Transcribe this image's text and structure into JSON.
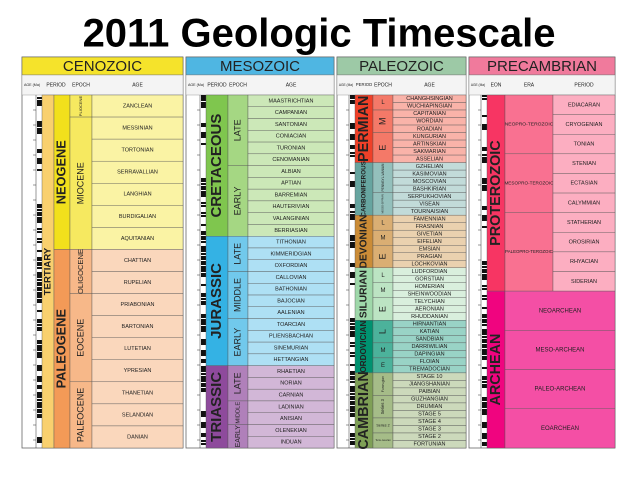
{
  "header": {
    "title": "2011 Geologic Timescale"
  },
  "columns": [
    {
      "name": "CENOZOIC",
      "color": "#f5e32b",
      "age_header": "AGE (Ma)",
      "headers": [
        "PERIOD",
        "EPOCH",
        "AGE"
      ],
      "span_label": "TERTIARY",
      "span_color": "#f9d06e",
      "periods": [
        {
          "name": "NEOGENE",
          "color": "#f2e01c",
          "epochs": [
            {
              "name": "PLIOCENE",
              "ages": [
                "ZANCLEAN"
              ]
            },
            {
              "name": "MIOCENE",
              "ages": [
                "MESSINIAN",
                "TORTONIAN",
                "SERRAVALLIAN",
                "LANGHIAN",
                "BURDIGALIAN",
                "AQUITANIAN"
              ]
            }
          ]
        },
        {
          "name": "PALEOGENE",
          "color": "#f39a57",
          "epochs": [
            {
              "name": "OLIGOCENE",
              "ages": [
                "CHATTIAN",
                "RUPELIAN"
              ]
            },
            {
              "name": "EOCENE",
              "ages": [
                "PRIABONIAN",
                "BARTONIAN",
                "LUTETIAN",
                "YPRESIAN"
              ]
            },
            {
              "name": "PALEOCENE",
              "ages": [
                "THANETIAN",
                "SELANDIAN",
                "DANIAN"
              ]
            }
          ]
        }
      ]
    },
    {
      "name": "MESOZOIC",
      "color": "#4fb6e2",
      "age_header": "AGE (Ma)",
      "headers": [
        "PERIOD",
        "EPOCH",
        "AGE"
      ],
      "periods": [
        {
          "name": "CRETACEOUS",
          "color": "#7fc64e",
          "epochs": [
            {
              "name": "LATE",
              "ages": [
                "MAASTRICHTIAN",
                "CAMPANIAN",
                "SANTONIAN",
                "CONIACIAN",
                "TURONIAN",
                "CENOMANIAN"
              ]
            },
            {
              "name": "EARLY",
              "ages": [
                "ALBIAN",
                "APTIAN",
                "BARREMIAN",
                "HAUTERIVIAN",
                "VALANGINIAN",
                "BERRIASIAN"
              ]
            }
          ]
        },
        {
          "name": "JURASSIC",
          "color": "#34b2e4",
          "epochs": [
            {
              "name": "LATE",
              "ages": [
                "TITHONIAN",
                "KIMMERIDGIAN",
                "OXFORDIAN"
              ]
            },
            {
              "name": "MIDDLE",
              "ages": [
                "CALLOVIAN",
                "BATHONIAN",
                "BAJOCIAN",
                "AALENIAN"
              ]
            },
            {
              "name": "EARLY",
              "ages": [
                "TOARCIAN",
                "PLIENSBACHIAN",
                "SINEMURIAN",
                "HETTANGIAN"
              ]
            }
          ]
        },
        {
          "name": "TRIASSIC",
          "color": "#8e4a9c",
          "epochs": [
            {
              "name": "LATE",
              "ages": [
                "RHAETIAN",
                "NORIAN",
                "CARNIAN"
              ]
            },
            {
              "name": "MIDDLE",
              "ages": [
                "LADINIAN",
                "ANISIAN"
              ]
            },
            {
              "name": "EARLY",
              "ages": [
                "OLENEKIAN",
                "INDUAN"
              ]
            }
          ]
        }
      ]
    },
    {
      "name": "PALEOZOIC",
      "color": "#9dc9a6",
      "age_header": "AGE (Ma)",
      "headers": [
        "PERIOD",
        "EPOCH",
        "AGE"
      ],
      "periods": [
        {
          "name": "PERMIAN",
          "color": "#f04028",
          "epochs": [
            {
              "name": "L",
              "ages": [
                "CHANGHSINGIAN",
                "WUCHIAPINGIAN"
              ]
            },
            {
              "name": "M",
              "ages": [
                "CAPITANIAN",
                "WORDIAN",
                "ROADIAN"
              ]
            },
            {
              "name": "E",
              "ages": [
                "KUNGURIAN",
                "ARTINSKIAN",
                "SAKMARIAN",
                "ASSELIAN"
              ]
            }
          ]
        },
        {
          "name": "CARBONIFEROUS",
          "color": "#67a5a0",
          "epochs": [
            {
              "name": "PENNSYL-VANIAN",
              "ages": [
                "GZHELIAN",
                "KASIMOVIAN",
                "MOSCOVIAN",
                "BASHKIRIAN"
              ]
            },
            {
              "name": "MISSIS-SIPPIAN",
              "ages": [
                "SERPUKHOVIAN",
                "VISEAN",
                "TOURNAISIAN"
              ]
            }
          ]
        },
        {
          "name": "DEVONIAN",
          "color": "#cb8c37",
          "epochs": [
            {
              "name": "L",
              "ages": [
                "FAMENNIAN",
                "FRASNIAN"
              ]
            },
            {
              "name": "M",
              "ages": [
                "GIVETIAN",
                "EIFELIAN"
              ]
            },
            {
              "name": "E",
              "ages": [
                "EMSIAN",
                "PRAGIAN",
                "LOCHKOVIAN"
              ]
            }
          ]
        },
        {
          "name": "SILURIAN",
          "color": "#9fd8aa",
          "epochs": [
            {
              "name": "L",
              "ages": [
                "LUDFORDIAN",
                "GORSTIAN"
              ]
            },
            {
              "name": "M",
              "ages": [
                "HOMERIAN",
                "SHEINWOODIAN"
              ]
            },
            {
              "name": "E",
              "ages": [
                "TELYCHIAN",
                "AERONIAN",
                "RHUDDANIAN"
              ]
            }
          ]
        },
        {
          "name": "ORDOVICIAN",
          "color": "#009270",
          "epochs": [
            {
              "name": "L",
              "ages": [
                "HIRNANTIAN",
                "KATIAN",
                "SANDBIAN"
              ]
            },
            {
              "name": "M",
              "ages": [
                "DARRIWILIAN",
                "DAPINGIAN"
              ]
            },
            {
              "name": "E",
              "ages": [
                "FLOIAN",
                "TREMADOCIAN"
              ]
            }
          ]
        },
        {
          "name": "CAMBRIAN",
          "color": "#7fa056",
          "epochs": [
            {
              "name": "Furon-gian",
              "ages": [
                "STAGE 10",
                "JIANGSHANIAN",
                "PAIBIAN"
              ]
            },
            {
              "name": "Series 3",
              "ages": [
                "GUZHANGIAN",
                "DRUMIAN",
                "STAGE 5"
              ]
            },
            {
              "name": "Series 2",
              "ages": [
                "STAGE 4",
                "STAGE 3"
              ]
            },
            {
              "name": "Terre-neuvian",
              "ages": [
                "STAGE 2",
                "FORTUNIAN"
              ]
            }
          ]
        }
      ]
    },
    {
      "name": "PRECAMBRIAN",
      "color": "#f07a9c",
      "age_header": "AGE (Ma)",
      "headers": [
        "EON",
        "ERA",
        "PERIOD"
      ],
      "periods": [
        {
          "name": "PROTEROZOIC",
          "color": "#f73563",
          "epochs": [
            {
              "name": "NEOPRO-TEROZOIC",
              "ages": [
                "EDIACARAN",
                "CRYOGENIAN",
                "TONIAN"
              ]
            },
            {
              "name": "MESOPRO-TEROZOIC",
              "ages": [
                "STENIAN",
                "ECTASIAN",
                "CALYMMIAN"
              ]
            },
            {
              "name": "PALEOPRO-TEROZOIC",
              "ages": [
                "STATHERIAN",
                "OROSIRIAN",
                "RHYACIAN",
                "SIDERIAN"
              ]
            }
          ]
        },
        {
          "name": "ARCHEAN",
          "color": "#f0047f",
          "epochs": [
            {
              "name": "NEOARCHEAN",
              "ages": []
            },
            {
              "name": "MESO-ARCHEAN",
              "ages": []
            },
            {
              "name": "PALEO-ARCHEAN",
              "ages": []
            },
            {
              "name": "EOARCHEAN",
              "ages": []
            }
          ]
        }
      ]
    }
  ]
}
